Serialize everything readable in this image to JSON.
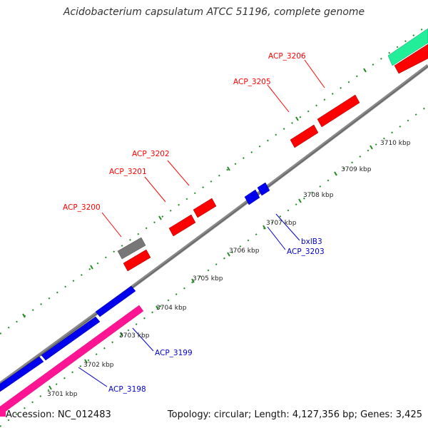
{
  "title": "Acidobacterium capsulatum ATCC 51196, complete genome",
  "footer": {
    "accession": "Accession: NC_012483",
    "summary": "Topology: circular; Length: 4,127,356 bp; Genes: 3,425"
  },
  "colors": {
    "forward_gene": "#ff0000",
    "reverse_gene": "#0000ee",
    "rna_gene": "#ff1493",
    "pseudo_gene": "#777777",
    "other_gene": "#22ee99",
    "backbone": "#888888",
    "tick": "#228b22",
    "forward_label": "#ff0000",
    "reverse_label": "#0000cc"
  },
  "scale_ticks": [
    "3701 kbp",
    "3702 kbp",
    "3703 kbp",
    "3704 kbp",
    "3705 kbp",
    "3706 kbp",
    "3707 kbp",
    "3708 kbp",
    "3709 kbp",
    "3710 kbp"
  ],
  "gene_labels": {
    "forward": [
      "ACP_3200",
      "ACP_3201",
      "ACP_3202",
      "ACP_3205",
      "ACP_3206"
    ],
    "reverse": [
      "ACP_3198",
      "ACP_3199",
      "bxlB3",
      "ACP_3203"
    ]
  }
}
